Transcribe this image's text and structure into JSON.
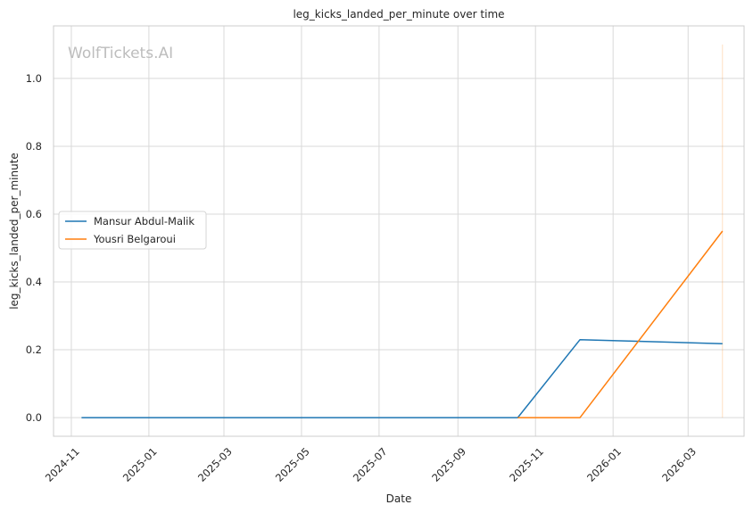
{
  "chart_data": {
    "type": "line",
    "title": "leg_kicks_landed_per_minute over time",
    "xlabel": "Date",
    "ylabel": "leg_kicks_landed_per_minute",
    "watermark": "WolfTickets.AI",
    "x_ticks": [
      "2024-11",
      "2025-01",
      "2025-03",
      "2025-05",
      "2025-07",
      "2025-09",
      "2025-11",
      "2026-01",
      "2026-03"
    ],
    "y_ticks": [
      "0.0",
      "0.2",
      "0.4",
      "0.6",
      "0.8",
      "1.0"
    ],
    "xlim": [
      "2024-10-18",
      "2026-04-14"
    ],
    "ylim": [
      -0.055,
      1.155
    ],
    "grid": true,
    "legend_position": "center-left",
    "series": [
      {
        "name": "Mansur Abdul-Malik",
        "color": "#1f77b4",
        "x": [
          "2024-11-09",
          "2025-10-18",
          "2025-12-06",
          "2026-03-28"
        ],
        "y": [
          0.0,
          0.0,
          0.23,
          0.218
        ]
      },
      {
        "name": "Yousri Belgaroui",
        "color": "#ff7f0e",
        "x": [
          "2025-10-18",
          "2025-12-06",
          "2026-03-28"
        ],
        "y": [
          0.0,
          0.0,
          0.55
        ]
      }
    ],
    "vertical_marker": {
      "x": "2026-03-28",
      "y_range": [
        0.0,
        1.1
      ],
      "color": "#ff7f0e"
    }
  }
}
